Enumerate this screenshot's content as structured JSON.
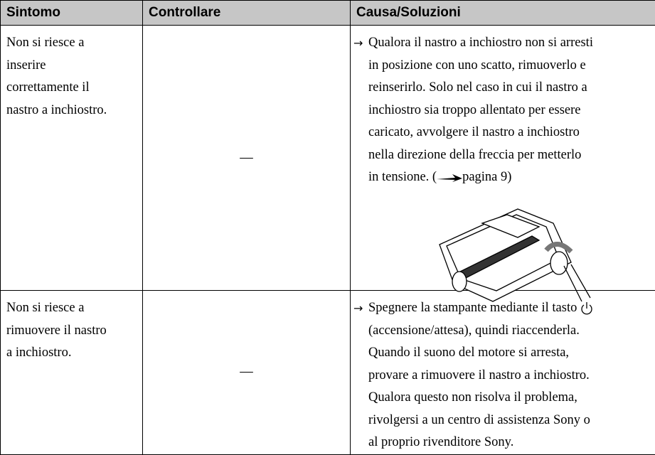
{
  "table": {
    "header": [
      "Sintomo",
      "Controllare",
      "Causa/Soluzioni"
    ],
    "rows": [
      {
        "symptom": [
          "Non si riesce a",
          "inserire",
          "correttamente il",
          "nastro a inchiostro."
        ],
        "check": "—",
        "bullet": "→",
        "solution": [
          [
            "Qualora il nastro a inchiostro non si arresti"
          ],
          [
            "in posizione con uno scatto, rimuoverlo e"
          ],
          [
            "reinserirlo. Solo nel caso in cui il nastro a"
          ],
          [
            "inchiostro sia troppo allentato per essere"
          ],
          [
            "caricato, avvolgere il nastro a inchiostro"
          ],
          [
            "nella direzione della freccia per metterlo"
          ],
          [
            "in tensione. (",
            "pagina 9)"
          ]
        ]
      },
      {
        "symptom": [
          "Non si riesce a",
          "rimuovere il nastro",
          "a inchiostro."
        ],
        "check": "—",
        "bullet": "→",
        "solution": [
          [
            "Spegnere la stampante mediante il tasto"
          ],
          [
            "(accensione/attesa), quindi riaccenderla."
          ],
          [
            "Quando il suono del motore si arresta,"
          ],
          [
            "provare a rimuovere il nastro a inchiostro."
          ],
          [
            "Qualora questo non risolva il problema,"
          ],
          [
            "rivolgersi a un centro di assistenza Sony o"
          ],
          [
            "al proprio rivenditore Sony."
          ]
        ]
      }
    ]
  }
}
